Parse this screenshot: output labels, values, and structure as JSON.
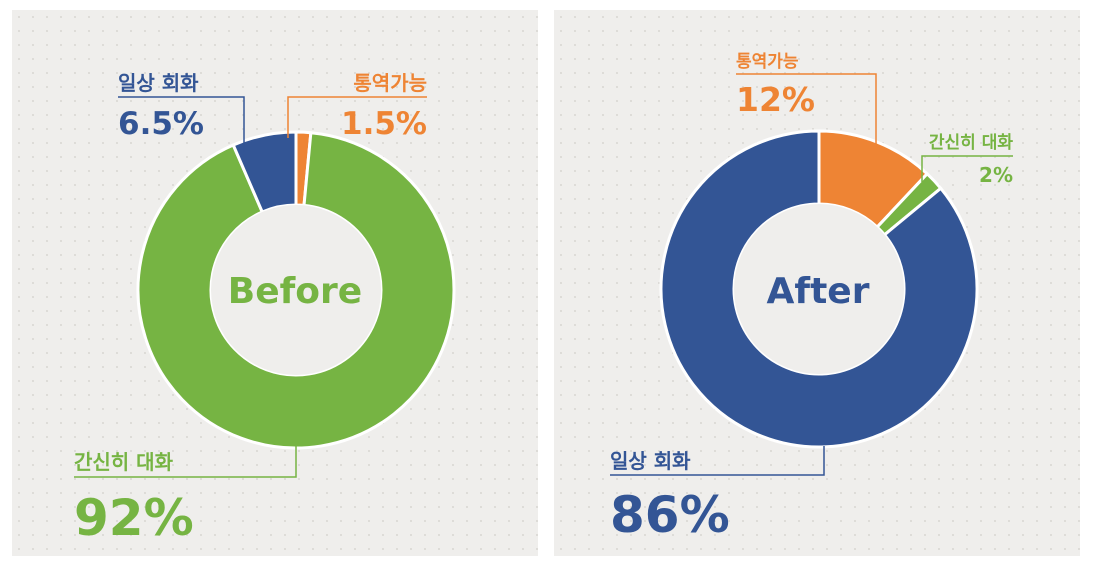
{
  "colors": {
    "green": "#76b443",
    "blue": "#335595",
    "orange": "#ee8434",
    "hole": "#efeeec"
  },
  "chart_data": [
    {
      "type": "pie",
      "center_label": "Before",
      "slices": [
        {
          "name": "통역가능",
          "value": 1.5,
          "display": "1.5%",
          "color": "#ee8434"
        },
        {
          "name": "간신히 대화",
          "value": 92,
          "display": "92%",
          "color": "#76b443"
        },
        {
          "name": "일상 회화",
          "value": 6.5,
          "display": "6.5%",
          "color": "#335595"
        }
      ]
    },
    {
      "type": "pie",
      "center_label": "After",
      "slices": [
        {
          "name": "통역가능",
          "value": 12,
          "display": "12%",
          "color": "#ee8434"
        },
        {
          "name": "간신히 대화",
          "value": 2,
          "display": "2%",
          "color": "#76b443"
        },
        {
          "name": "일상 회화",
          "value": 86,
          "display": "86%",
          "color": "#335595"
        }
      ]
    }
  ]
}
